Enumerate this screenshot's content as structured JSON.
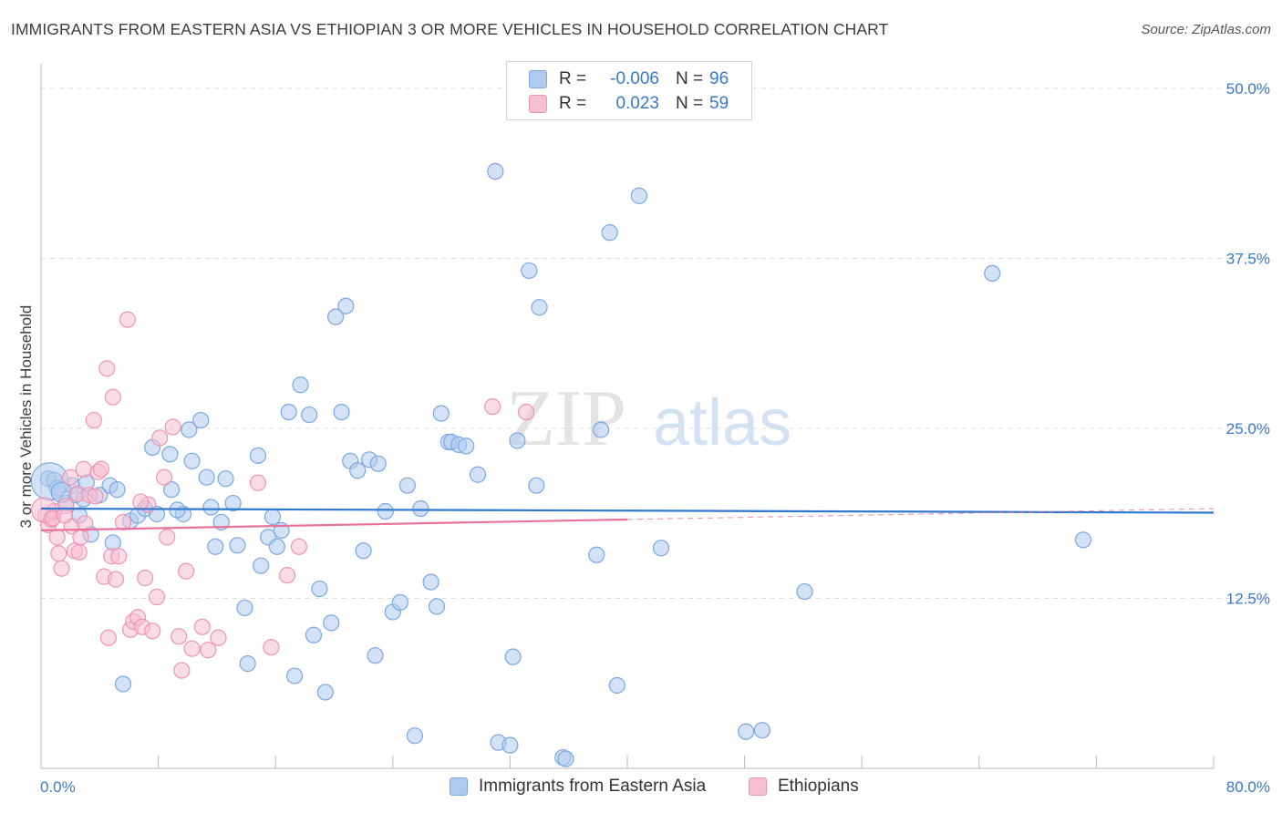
{
  "title": "IMMIGRANTS FROM EASTERN ASIA VS ETHIOPIAN 3 OR MORE VEHICLES IN HOUSEHOLD CORRELATION CHART",
  "source": "Source: ZipAtlas.com",
  "watermark": {
    "zip": "ZIP",
    "atlas": "atlas"
  },
  "colors": {
    "blue_fill": "#aecbef",
    "blue_stroke": "#7aa8e0",
    "blue_line": "#2f78cf",
    "pink_fill": "#f6bfd2",
    "pink_stroke": "#ee94b4",
    "pink_line": "#e8729b",
    "tick_text": "#3a78c9",
    "grid": "#dddddd"
  },
  "legend": {
    "rows": [
      {
        "r_label": "R =",
        "r_value": "-0.006",
        "n_label": "N =",
        "n_value": "96"
      },
      {
        "r_label": "R =",
        "r_value": "0.023",
        "n_label": "N =",
        "n_value": "59"
      }
    ]
  },
  "bottom_legend": [
    "Immigrants from Eastern Asia",
    "Ethiopians"
  ],
  "chart_data": {
    "type": "scatter",
    "title": "IMMIGRANTS FROM EASTERN ASIA VS ETHIOPIAN 3 OR MORE VEHICLES IN HOUSEHOLD CORRELATION CHART",
    "xlabel": "",
    "ylabel": "3 or more Vehicles in Household",
    "xlim": [
      0,
      80
    ],
    "ylim": [
      0,
      50
    ],
    "x_tick_labels": [
      "0.0%",
      "80.0%"
    ],
    "y_ticks": [
      12.5,
      25.0,
      37.5,
      50.0
    ],
    "y_tick_labels": [
      "12.5%",
      "25.0%",
      "37.5%",
      "50.0%"
    ],
    "grid": true,
    "legend_position": "top-center",
    "series": [
      {
        "name": "Immigrants from Eastern Asia",
        "R": -0.006,
        "N": 96,
        "trend": {
          "x": [
            0,
            80
          ],
          "y": [
            19.1,
            18.8
          ],
          "dashed_from": null
        },
        "points": [
          [
            0.5,
            21.3
          ],
          [
            0.9,
            21.2
          ],
          [
            1.1,
            20.6
          ],
          [
            1.7,
            19.5
          ],
          [
            2.1,
            20.8
          ],
          [
            2.4,
            20.1
          ],
          [
            2.6,
            18.6
          ],
          [
            3.4,
            17.2
          ],
          [
            4.0,
            20.1
          ],
          [
            4.7,
            20.8
          ],
          [
            4.9,
            16.6
          ],
          [
            5.6,
            6.2
          ],
          [
            6.1,
            18.2
          ],
          [
            6.6,
            18.6
          ],
          [
            7.1,
            19.1
          ],
          [
            7.6,
            23.6
          ],
          [
            7.9,
            18.7
          ],
          [
            8.8,
            23.1
          ],
          [
            8.9,
            20.5
          ],
          [
            9.7,
            18.7
          ],
          [
            10.1,
            24.9
          ],
          [
            10.3,
            22.6
          ],
          [
            10.9,
            25.6
          ],
          [
            11.3,
            21.4
          ],
          [
            11.6,
            19.2
          ],
          [
            11.9,
            16.3
          ],
          [
            12.3,
            18.1
          ],
          [
            12.6,
            21.3
          ],
          [
            13.1,
            19.5
          ],
          [
            13.4,
            16.4
          ],
          [
            13.9,
            11.8
          ],
          [
            14.1,
            7.7
          ],
          [
            14.8,
            23.0
          ],
          [
            15.0,
            14.9
          ],
          [
            15.5,
            17.0
          ],
          [
            15.8,
            18.5
          ],
          [
            16.1,
            16.3
          ],
          [
            16.4,
            17.5
          ],
          [
            16.9,
            26.2
          ],
          [
            17.3,
            6.8
          ],
          [
            17.7,
            28.2
          ],
          [
            18.3,
            26.0
          ],
          [
            18.6,
            9.8
          ],
          [
            19.0,
            13.2
          ],
          [
            19.4,
            5.6
          ],
          [
            19.8,
            10.7
          ],
          [
            20.1,
            33.2
          ],
          [
            20.5,
            26.2
          ],
          [
            20.8,
            34.0
          ],
          [
            21.1,
            22.6
          ],
          [
            21.6,
            21.9
          ],
          [
            22.0,
            16.0
          ],
          [
            22.4,
            22.7
          ],
          [
            22.8,
            8.3
          ],
          [
            23.0,
            22.4
          ],
          [
            23.5,
            18.9
          ],
          [
            24.0,
            11.5
          ],
          [
            24.5,
            12.2
          ],
          [
            25.0,
            20.8
          ],
          [
            25.5,
            2.4
          ],
          [
            25.9,
            19.1
          ],
          [
            26.6,
            13.7
          ],
          [
            27.0,
            11.9
          ],
          [
            27.3,
            26.1
          ],
          [
            27.8,
            24.0
          ],
          [
            28.0,
            24.0
          ],
          [
            28.5,
            23.8
          ],
          [
            29.0,
            23.7
          ],
          [
            29.8,
            21.6
          ],
          [
            31.0,
            43.9
          ],
          [
            31.2,
            1.9
          ],
          [
            32.0,
            1.7
          ],
          [
            32.2,
            8.2
          ],
          [
            32.5,
            24.1
          ],
          [
            33.3,
            36.6
          ],
          [
            33.8,
            20.8
          ],
          [
            34.0,
            33.9
          ],
          [
            35.6,
            0.8
          ],
          [
            35.8,
            0.7
          ],
          [
            37.9,
            15.7
          ],
          [
            38.2,
            24.9
          ],
          [
            38.8,
            39.4
          ],
          [
            39.3,
            6.1
          ],
          [
            40.8,
            42.1
          ],
          [
            42.3,
            16.2
          ],
          [
            48.1,
            2.7
          ],
          [
            49.2,
            2.8
          ],
          [
            52.1,
            13.0
          ],
          [
            64.9,
            36.4
          ],
          [
            71.1,
            16.8
          ],
          [
            0.6,
            21.1
          ],
          [
            1.4,
            20.3
          ],
          [
            3.1,
            21.0
          ],
          [
            2.9,
            19.8
          ],
          [
            5.2,
            20.5
          ],
          [
            9.3,
            19.0
          ]
        ],
        "point_sizes": [
          1,
          1,
          1,
          1,
          1,
          1,
          1,
          1,
          1,
          1,
          1,
          1,
          1,
          1,
          1,
          1,
          1,
          1,
          1,
          1,
          1,
          1,
          1,
          1,
          1,
          1,
          1,
          1,
          1,
          1,
          1,
          1,
          1,
          1,
          1,
          1,
          1,
          1,
          1,
          1,
          1,
          1,
          1,
          1,
          1,
          1,
          1,
          1,
          1,
          1,
          1,
          1,
          1,
          1,
          1,
          1,
          1,
          1,
          1,
          1,
          1,
          1,
          1,
          1,
          1,
          1,
          1,
          1,
          1,
          1,
          1,
          1,
          1,
          1,
          1,
          1,
          1,
          1,
          1,
          1,
          1,
          1,
          1,
          1,
          1,
          1,
          1,
          1,
          1,
          1,
          2.4,
          1.3,
          1,
          1,
          1,
          1
        ]
      },
      {
        "name": "Ethiopians",
        "R": 0.023,
        "N": 59,
        "trend": {
          "x": [
            0,
            80
          ],
          "y": [
            17.5,
            19.1
          ],
          "dashed_from": 40
        },
        "points": [
          [
            0.3,
            18.6
          ],
          [
            0.5,
            17.9
          ],
          [
            0.7,
            18.3
          ],
          [
            0.9,
            18.9
          ],
          [
            1.1,
            17.0
          ],
          [
            1.2,
            15.8
          ],
          [
            1.4,
            14.7
          ],
          [
            1.7,
            19.3
          ],
          [
            2.0,
            21.4
          ],
          [
            2.1,
            17.8
          ],
          [
            2.3,
            16.0
          ],
          [
            2.5,
            20.2
          ],
          [
            2.7,
            17.0
          ],
          [
            2.9,
            22.0
          ],
          [
            3.0,
            18.0
          ],
          [
            3.3,
            20.1
          ],
          [
            3.6,
            25.6
          ],
          [
            3.9,
            21.8
          ],
          [
            4.1,
            22.0
          ],
          [
            4.3,
            14.1
          ],
          [
            4.5,
            29.4
          ],
          [
            4.6,
            9.6
          ],
          [
            4.8,
            15.6
          ],
          [
            4.9,
            27.3
          ],
          [
            5.1,
            13.9
          ],
          [
            5.3,
            15.6
          ],
          [
            5.6,
            18.1
          ],
          [
            5.9,
            33.0
          ],
          [
            6.1,
            10.2
          ],
          [
            6.3,
            10.8
          ],
          [
            6.6,
            11.1
          ],
          [
            6.9,
            10.4
          ],
          [
            7.1,
            14.0
          ],
          [
            7.3,
            19.4
          ],
          [
            7.6,
            10.1
          ],
          [
            7.9,
            12.6
          ],
          [
            8.1,
            24.3
          ],
          [
            8.4,
            21.4
          ],
          [
            8.6,
            17.0
          ],
          [
            9.0,
            25.1
          ],
          [
            9.4,
            9.7
          ],
          [
            9.6,
            7.2
          ],
          [
            9.9,
            14.5
          ],
          [
            10.3,
            8.8
          ],
          [
            11.0,
            10.4
          ],
          [
            11.4,
            8.7
          ],
          [
            12.1,
            9.6
          ],
          [
            14.8,
            21.0
          ],
          [
            15.7,
            8.9
          ],
          [
            16.8,
            14.2
          ],
          [
            17.6,
            16.3
          ],
          [
            30.8,
            26.6
          ],
          [
            33.1,
            26.2
          ],
          [
            0.2,
            19.0
          ],
          [
            0.8,
            18.4
          ],
          [
            1.6,
            18.6
          ],
          [
            6.8,
            19.6
          ],
          [
            3.7,
            20.0
          ],
          [
            2.6,
            15.9
          ]
        ],
        "point_sizes": [
          1,
          1,
          1,
          1,
          1,
          1,
          1,
          1,
          1,
          1,
          1,
          1,
          1,
          1,
          1,
          1,
          1,
          1,
          1,
          1,
          1,
          1,
          1,
          1,
          1,
          1,
          1,
          1,
          1,
          1,
          1,
          1,
          1,
          1,
          1,
          1,
          1,
          1,
          1,
          1,
          1,
          1,
          1,
          1,
          1,
          1,
          1,
          1,
          1,
          1,
          1,
          1,
          1,
          1.6,
          1,
          1,
          1,
          1,
          1
        ]
      }
    ]
  }
}
